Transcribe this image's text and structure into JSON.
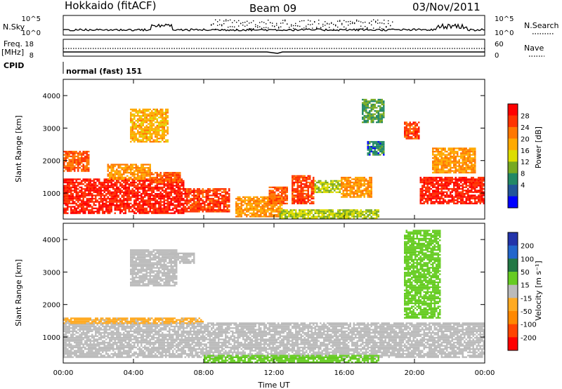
{
  "header": {
    "station": "Hokkaido (fitACF)",
    "beam": "Beam 09",
    "date": "03/Nov/2011"
  },
  "top_panels": {
    "nsky_label": "N.Sky",
    "nsearch_label": "N.Search",
    "nsky_ticks": [
      "10^5",
      "10^0"
    ],
    "nsearch_ticks": [
      "10^5",
      "10^0"
    ],
    "freq_label": "Freq.",
    "freq_unit": "[MHz]",
    "freq_ticks": [
      "18",
      "8"
    ],
    "nave_label": "Nave",
    "nave_ticks": [
      "60",
      "0"
    ],
    "cpid_label": "CPID",
    "cpid_value": "normal (fast) 151"
  },
  "chart_data": [
    {
      "type": "heatmap",
      "name": "power",
      "ylabel": "Slant Range [km]",
      "xlabel": "",
      "xlim": [
        0,
        24
      ],
      "ylim": [
        200,
        4500
      ],
      "x_ticks": [
        "00:00",
        "04:00",
        "08:00",
        "12:00",
        "16:00",
        "20:00",
        "00:00"
      ],
      "y_ticks": [
        "1000",
        "2000",
        "3000",
        "4000"
      ],
      "colorbar": {
        "label": "Power [dB]",
        "ticks": [
          "28",
          "24",
          "20",
          "16",
          "12",
          "8",
          "4"
        ],
        "colors": [
          "#ff0000",
          "#ff3300",
          "#ff7700",
          "#ffaa00",
          "#dddd00",
          "#77aa22",
          "#228866",
          "#225599",
          "#0000ff"
        ]
      },
      "regions": [
        {
          "t0": 0.0,
          "t1": 6.9,
          "r0": 400,
          "r1": 1450,
          "level": 28
        },
        {
          "t0": 6.9,
          "t1": 9.5,
          "r0": 450,
          "r1": 1150,
          "level": 26
        },
        {
          "t0": 5.0,
          "t1": 6.7,
          "r0": 1350,
          "r1": 1650,
          "level": 24
        },
        {
          "t0": 0.0,
          "t1": 1.5,
          "r0": 1700,
          "r1": 2300,
          "level": 24
        },
        {
          "t0": 2.5,
          "t1": 5.0,
          "r0": 1450,
          "r1": 1900,
          "level": 20
        },
        {
          "t0": 3.8,
          "t1": 6.0,
          "r0": 2600,
          "r1": 3600,
          "level": 18
        },
        {
          "t0": 9.8,
          "t1": 12.5,
          "r0": 300,
          "r1": 900,
          "level": 20
        },
        {
          "t0": 11.7,
          "t1": 12.8,
          "r0": 700,
          "r1": 1200,
          "level": 24
        },
        {
          "t0": 13.0,
          "t1": 14.3,
          "r0": 700,
          "r1": 1550,
          "level": 26
        },
        {
          "t0": 14.3,
          "t1": 15.8,
          "r0": 1050,
          "r1": 1400,
          "level": 12
        },
        {
          "t0": 15.8,
          "t1": 17.6,
          "r0": 900,
          "r1": 1500,
          "level": 20
        },
        {
          "t0": 12.3,
          "t1": 18.0,
          "r0": 250,
          "r1": 500,
          "level": 12
        },
        {
          "t0": 17.3,
          "t1": 18.3,
          "r0": 2200,
          "r1": 2600,
          "level": 6
        },
        {
          "t0": 17.0,
          "t1": 18.3,
          "r0": 3200,
          "r1": 3900,
          "level": 8
        },
        {
          "t0": 19.4,
          "t1": 20.3,
          "r0": 2700,
          "r1": 3200,
          "level": 26
        },
        {
          "t0": 20.3,
          "t1": 24.0,
          "r0": 700,
          "r1": 1500,
          "level": 28
        },
        {
          "t0": 21.0,
          "t1": 23.5,
          "r0": 1650,
          "r1": 2400,
          "level": 20
        }
      ]
    },
    {
      "type": "heatmap",
      "name": "velocity",
      "ylabel": "Slant Range [km]",
      "xlabel": "Time UT",
      "xlim": [
        0,
        24
      ],
      "ylim": [
        200,
        4500
      ],
      "x_ticks": [
        "00:00",
        "04:00",
        "08:00",
        "12:00",
        "16:00",
        "20:00",
        "00:00"
      ],
      "y_ticks": [
        "1000",
        "2000",
        "3000",
        "4000"
      ],
      "colorbar": {
        "label": "Velocity [m s⁻¹]",
        "ticks": [
          "200",
          "100",
          "50",
          "15",
          "-15",
          "-50",
          "-100",
          "-200"
        ],
        "colors": [
          "#2233aa",
          "#2266cc",
          "#227744",
          "#66cc22",
          "#bbbbbb",
          "#ffaa22",
          "#ff8800",
          "#ff4400",
          "#ff0000"
        ]
      },
      "regions": [
        {
          "t0": 0.0,
          "t1": 24.0,
          "r0": 400,
          "r1": 1450,
          "level": 0
        },
        {
          "t0": 0.0,
          "t1": 8.0,
          "r0": 1450,
          "r1": 1600,
          "level": -20
        },
        {
          "t0": 3.8,
          "t1": 6.5,
          "r0": 2600,
          "r1": 3700,
          "level": 0
        },
        {
          "t0": 8.0,
          "t1": 18.0,
          "r0": 250,
          "r1": 450,
          "level": 25
        },
        {
          "t0": 19.4,
          "t1": 21.5,
          "r0": 1600,
          "r1": 4300,
          "level": 25
        },
        {
          "t0": 6.0,
          "t1": 7.5,
          "r0": 3300,
          "r1": 3600,
          "level": 0
        }
      ]
    }
  ]
}
